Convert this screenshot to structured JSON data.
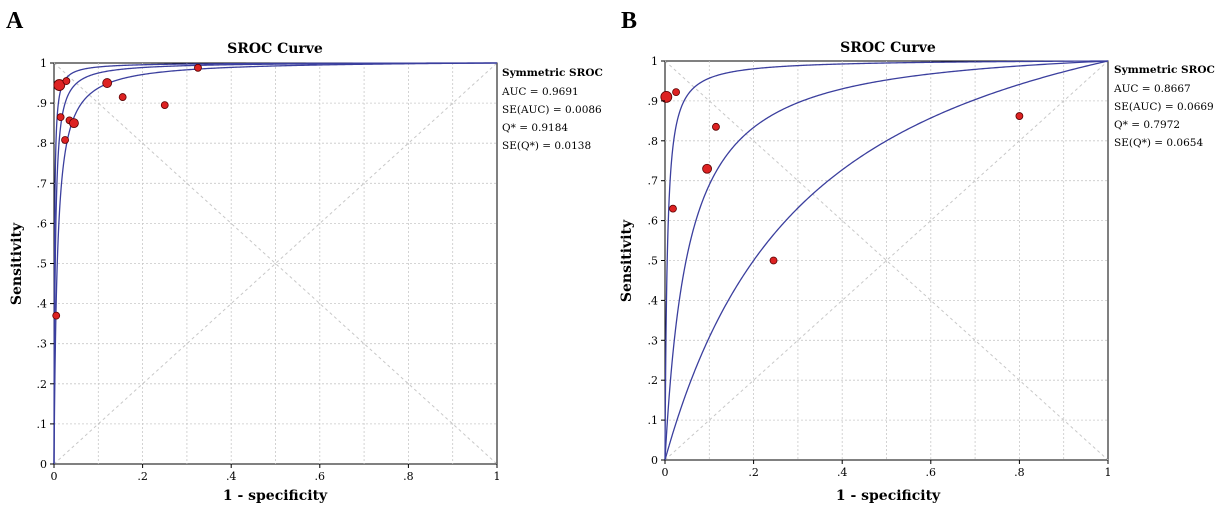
{
  "panels": [
    {
      "letter": "A",
      "title": "SROC Curve",
      "xlabel": "1 - specificity",
      "ylabel": "Sensitivity",
      "stats": {
        "heading": "Symmetric SROC",
        "lines": [
          "AUC = 0.9691",
          "SE(AUC) = 0.0086",
          "Q* = 0.9184",
          "SE(Q*) = 0.0138"
        ]
      }
    },
    {
      "letter": "B",
      "title": "SROC Curve",
      "xlabel": "1 - specificity",
      "ylabel": "Sensitivity",
      "stats": {
        "heading": "Symmetric SROC",
        "lines": [
          "AUC = 0.8667",
          "SE(AUC) = 0.0669",
          "Q* = 0.7972",
          "SE(Q*) = 0.0654"
        ]
      }
    }
  ],
  "chart_data": [
    {
      "type": "scatter",
      "title": "SROC Curve",
      "xlabel": "1 - specificity",
      "ylabel": "Sensitivity",
      "xlim": [
        0,
        1
      ],
      "ylim": [
        0,
        1
      ],
      "xticks": [
        "0",
        ".2",
        ".4",
        ".6",
        ".8",
        "1"
      ],
      "yticks": [
        "0",
        ".1",
        ".2",
        ".3",
        ".4",
        ".5",
        ".6",
        ".7",
        ".8",
        ".9",
        "1"
      ],
      "grid": true,
      "reference_diagonals": true,
      "curve_color": "#3b3f9e",
      "point_color": "#dd2222",
      "curves": [
        {
          "role": "lower",
          "dor": 135
        },
        {
          "role": "sroc",
          "dor": 350
        },
        {
          "role": "upper",
          "dor": 900
        }
      ],
      "points": [
        {
          "x": 0.012,
          "y": 0.945,
          "size": "large"
        },
        {
          "x": 0.028,
          "y": 0.955,
          "size": "small"
        },
        {
          "x": 0.015,
          "y": 0.865,
          "size": "small"
        },
        {
          "x": 0.035,
          "y": 0.857,
          "size": "small"
        },
        {
          "x": 0.045,
          "y": 0.85,
          "size": "medium"
        },
        {
          "x": 0.025,
          "y": 0.808,
          "size": "small"
        },
        {
          "x": 0.12,
          "y": 0.95,
          "size": "medium"
        },
        {
          "x": 0.155,
          "y": 0.915,
          "size": "small"
        },
        {
          "x": 0.25,
          "y": 0.895,
          "size": "small"
        },
        {
          "x": 0.325,
          "y": 0.988,
          "size": "small"
        },
        {
          "x": 0.005,
          "y": 0.37,
          "size": "small"
        }
      ],
      "stats": {
        "AUC": 0.9691,
        "SE_AUC": 0.0086,
        "Q_star": 0.9184,
        "SE_Q_star": 0.0138
      }
    },
    {
      "type": "scatter",
      "title": "SROC Curve",
      "xlabel": "1 - specificity",
      "ylabel": "Sensitivity",
      "xlim": [
        0,
        1
      ],
      "ylim": [
        0,
        1
      ],
      "xticks": [
        "0",
        ".2",
        ".4",
        ".6",
        ".8",
        "1"
      ],
      "yticks": [
        "0",
        ".1",
        ".2",
        ".3",
        ".4",
        ".5",
        ".6",
        ".7",
        ".8",
        ".9",
        "1"
      ],
      "grid": true,
      "reference_diagonals": true,
      "curve_color": "#3b3f9e",
      "point_color": "#dd2222",
      "curves": [
        {
          "role": "lower",
          "dor": 4
        },
        {
          "role": "sroc",
          "dor": 20
        },
        {
          "role": "upper",
          "dor": 200
        }
      ],
      "points": [
        {
          "x": 0.003,
          "y": 0.91,
          "size": "large"
        },
        {
          "x": 0.025,
          "y": 0.922,
          "size": "small"
        },
        {
          "x": 0.018,
          "y": 0.63,
          "size": "small"
        },
        {
          "x": 0.095,
          "y": 0.73,
          "size": "medium"
        },
        {
          "x": 0.115,
          "y": 0.835,
          "size": "small"
        },
        {
          "x": 0.245,
          "y": 0.5,
          "size": "small"
        },
        {
          "x": 0.8,
          "y": 0.862,
          "size": "small"
        }
      ],
      "stats": {
        "AUC": 0.8667,
        "SE_AUC": 0.0669,
        "Q_star": 0.7972,
        "SE_Q_star": 0.0654
      }
    }
  ]
}
